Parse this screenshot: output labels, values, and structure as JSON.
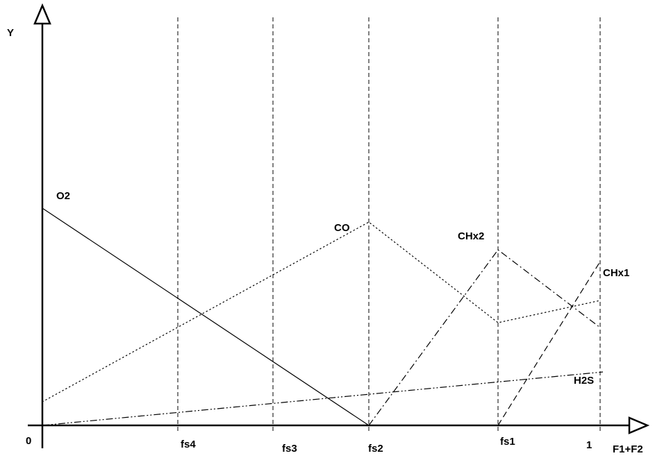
{
  "axes": {
    "y_label": "Y",
    "x_label": "F1+F2",
    "origin_label": "0"
  },
  "markers": [
    {
      "id": "fs4",
      "label": "fs4"
    },
    {
      "id": "fs3",
      "label": "fs3"
    },
    {
      "id": "fs2",
      "label": "fs2"
    },
    {
      "id": "fs1",
      "label": "fs1"
    },
    {
      "id": "one",
      "label": "1"
    }
  ],
  "curves": [
    {
      "id": "o2",
      "label": "O2",
      "style": "solid"
    },
    {
      "id": "co",
      "label": "CO",
      "style": "dotted"
    },
    {
      "id": "chx2",
      "label": "CHx2",
      "style": "dash-dot"
    },
    {
      "id": "chx1",
      "label": "CHx1",
      "style": "dashed"
    },
    {
      "id": "h2s",
      "label": "H2S",
      "style": "dash-dot-dot"
    }
  ],
  "colors": {
    "ink": "#000000",
    "background": "#ffffff"
  }
}
